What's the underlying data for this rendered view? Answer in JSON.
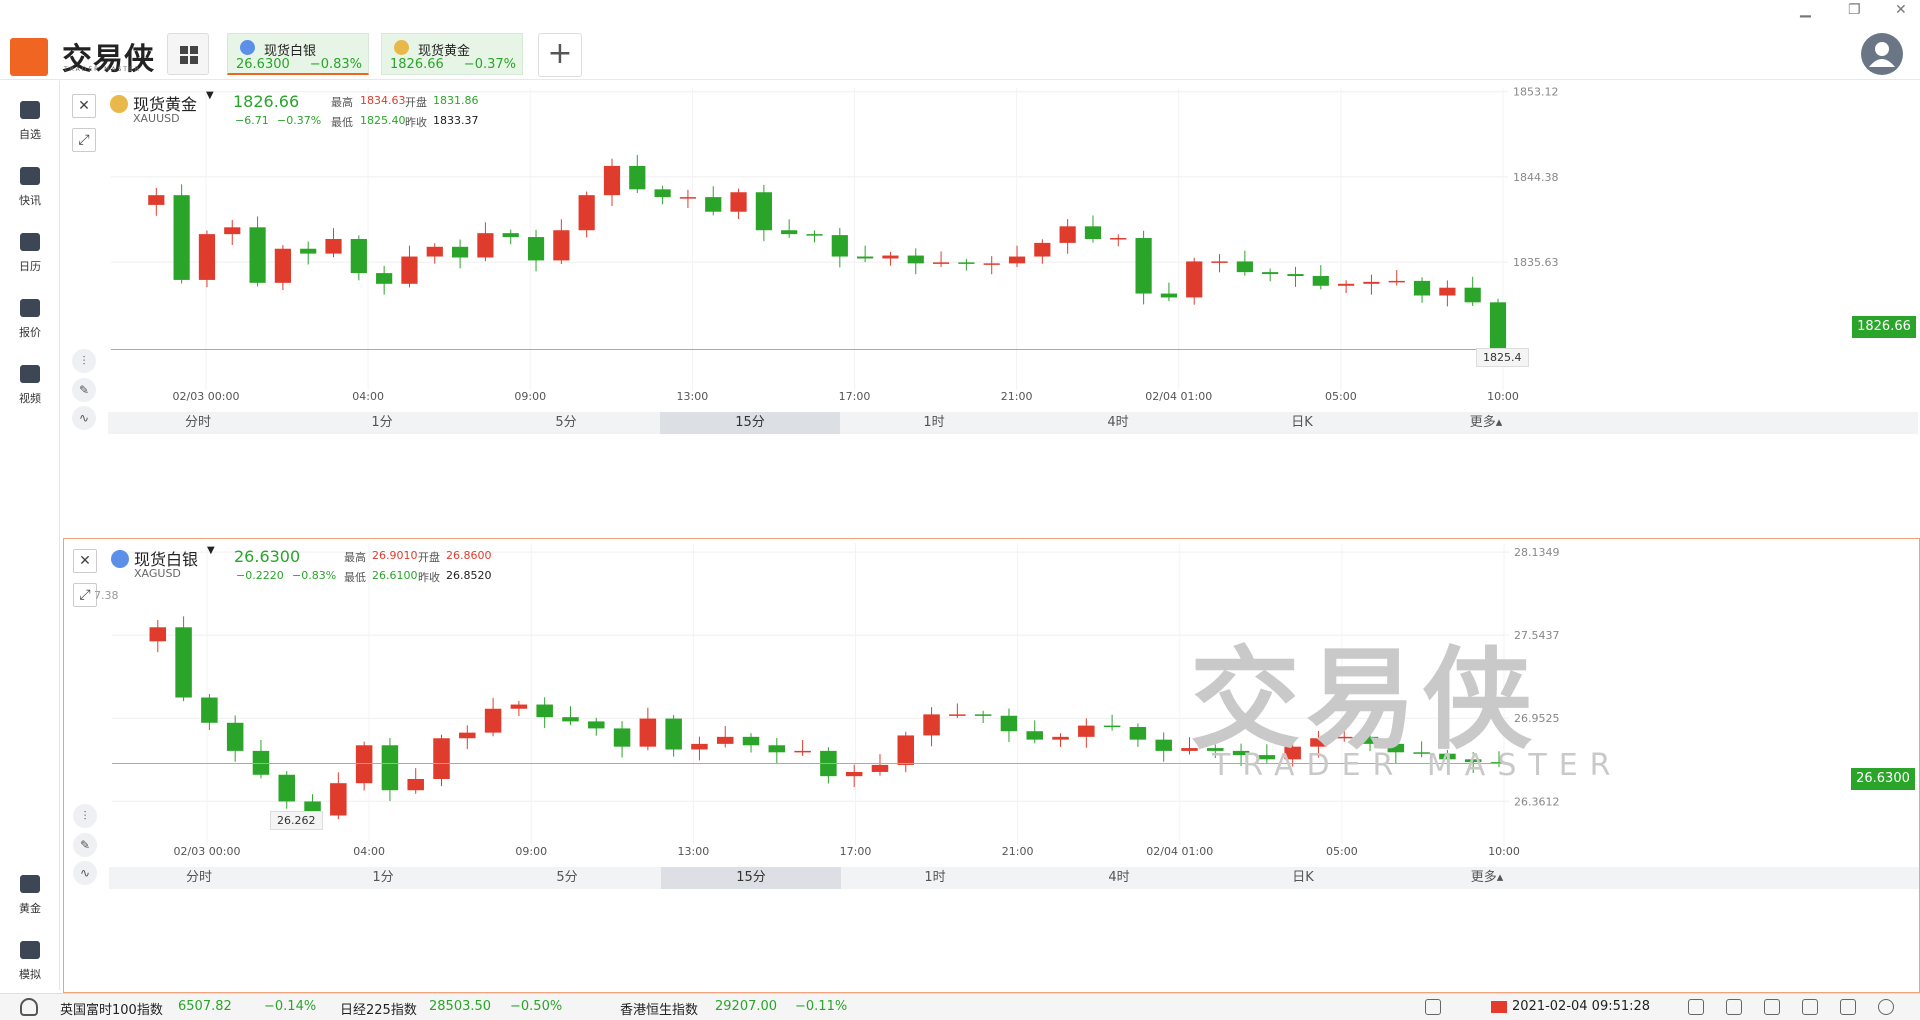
{
  "app": {
    "logo_text": "交易侠",
    "logo_sub": "TRADER MASTER",
    "tabs": [
      {
        "name": "现货白银",
        "price": "26.6300",
        "pct": "−0.83%",
        "coin": "#5b8fe8"
      },
      {
        "name": "现货黄金",
        "price": "1826.66",
        "pct": "−0.37%",
        "coin": "#e8b84a"
      }
    ],
    "add_label": "+"
  },
  "sidebar": {
    "items": [
      {
        "label": "自选",
        "icon": "bookmark-icon"
      },
      {
        "label": "快讯",
        "icon": "news-icon"
      },
      {
        "label": "日历",
        "icon": "calendar-icon"
      },
      {
        "label": "报价",
        "icon": "trend-icon"
      },
      {
        "label": "视频",
        "icon": "play-icon"
      }
    ],
    "bottom_items": [
      {
        "label": "黄金",
        "icon": "abacus-icon"
      },
      {
        "label": "模拟",
        "icon": "wallet-icon"
      }
    ]
  },
  "periods": [
    "分时",
    "1分",
    "5分",
    "15分",
    "1时",
    "4时",
    "日K",
    "更多▴"
  ],
  "selected_period": 3,
  "gold": {
    "name": "现货黄金",
    "code": "XAUUSD",
    "price": "1826.66",
    "change": "−6.71",
    "pct": "−0.37%",
    "high_label": "最高",
    "high": "1834.63",
    "low_label": "最低",
    "low": "1825.40",
    "open_label": "开盘",
    "open": "1831.86",
    "prev_label": "昨收",
    "prev": "1833.37",
    "last_tag": "1826.66",
    "min_label": "1825.4",
    "coin": "#e8b84a"
  },
  "silver": {
    "name": "现货白银",
    "code": "XAGUSD",
    "price": "26.6300",
    "change": "−0.2220",
    "pct": "−0.83%",
    "high_label": "最高",
    "high": "26.9010",
    "low_label": "最低",
    "low": "26.6100",
    "open_label": "开盘",
    "open": "26.8600",
    "prev_label": "昨收",
    "prev": "26.8520",
    "last_tag": "26.6300",
    "min_label": "26.262",
    "coin": "#5b8fe8",
    "partial_tick": "7.38"
  },
  "chart_data": [
    {
      "type": "candlestick",
      "symbol": "XAUUSD",
      "interval": "15分",
      "y_ticks": [
        1853.12,
        1844.38,
        1835.63
      ],
      "ylim": [
        1822.5,
        1853.5
      ],
      "x_ticks": [
        "02/03 00:00",
        "04:00",
        "09:00",
        "13:00",
        "17:00",
        "21:00",
        "02/04 01:00",
        "05:00",
        "10:00"
      ],
      "last_price": 1826.66,
      "waypoints": [
        1841.5,
        1842.5,
        1833.8,
        1838.5,
        1839.2,
        1833.5,
        1837.0,
        1836.5,
        1838.0,
        1834.5,
        1833.4,
        1836.2,
        1837.2,
        1836.1,
        1838.6,
        1838.2,
        1835.8,
        1838.9,
        1842.5,
        1845.5,
        1843.1,
        1842.3,
        1842.3,
        1840.8,
        1842.8,
        1838.9,
        1838.5,
        1838.4,
        1836.2,
        1836.0,
        1836.3,
        1835.5,
        1835.6,
        1835.5,
        1835.5,
        1836.2,
        1837.6,
        1839.3,
        1838.0,
        1838.1,
        1832.4,
        1832.0,
        1835.7,
        1835.7,
        1834.6,
        1834.4,
        1834.2,
        1833.2,
        1833.4,
        1833.6,
        1833.7,
        1832.2,
        1833.0,
        1831.5,
        1826.66
      ]
    },
    {
      "type": "candlestick",
      "symbol": "XAGUSD",
      "interval": "15分",
      "y_ticks": [
        28.1349,
        27.5437,
        26.9525,
        26.3612
      ],
      "ylim": [
        26.05,
        28.2
      ],
      "x_ticks": [
        "02/03 00:00",
        "04:00",
        "09:00",
        "13:00",
        "17:00",
        "21:00",
        "02/04 01:00",
        "05:00",
        "10:00"
      ],
      "last_price": 26.63,
      "waypoints": [
        27.5,
        27.6,
        27.1,
        26.92,
        26.72,
        26.55,
        26.36,
        26.26,
        26.49,
        26.76,
        26.44,
        26.52,
        26.81,
        26.85,
        27.02,
        27.05,
        26.96,
        26.93,
        26.88,
        26.75,
        26.95,
        26.73,
        26.77,
        26.82,
        26.76,
        26.71,
        26.72,
        26.54,
        26.57,
        26.62,
        26.83,
        26.98,
        26.98,
        26.97,
        26.86,
        26.8,
        26.82,
        26.9,
        26.89,
        26.8,
        26.72,
        26.74,
        26.72,
        26.69,
        26.66,
        26.75,
        26.81,
        26.82,
        26.77,
        26.71,
        26.7,
        26.66,
        26.64,
        26.63
      ]
    }
  ]
}
